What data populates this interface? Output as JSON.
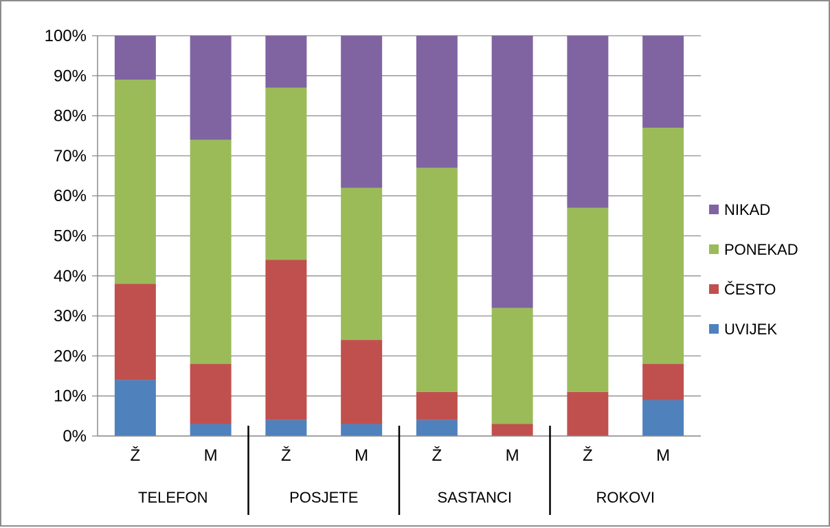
{
  "chart_data": {
    "type": "bar",
    "stacked": true,
    "percent_stacked": true,
    "title": "",
    "xlabel": "",
    "ylabel": "",
    "ylim": [
      0,
      100
    ],
    "y_ticks": [
      "0%",
      "10%",
      "20%",
      "30%",
      "40%",
      "50%",
      "60%",
      "70%",
      "80%",
      "90%",
      "100%"
    ],
    "grid": true,
    "legend_position": "right",
    "categories": [
      "Ž",
      "M",
      "Ž",
      "M",
      "Ž",
      "M",
      "Ž",
      "M"
    ],
    "groups": [
      {
        "label": "TELEFON",
        "categories": [
          "Ž",
          "M"
        ]
      },
      {
        "label": "POSJETE",
        "categories": [
          "Ž",
          "M"
        ]
      },
      {
        "label": "SASTANCI",
        "categories": [
          "Ž",
          "M"
        ]
      },
      {
        "label": "ROKOVI",
        "categories": [
          "Ž",
          "M"
        ]
      }
    ],
    "series": [
      {
        "name": "UVIJEK",
        "color": "#4f81bd",
        "values": [
          14,
          3,
          4,
          3,
          4,
          0,
          0,
          9
        ]
      },
      {
        "name": "ČESTO",
        "color": "#c0504d",
        "values": [
          24,
          15,
          40,
          21,
          7,
          3,
          11,
          9
        ]
      },
      {
        "name": "PONEKAD",
        "color": "#9bbb59",
        "values": [
          51,
          56,
          43,
          38,
          56,
          29,
          46,
          59
        ]
      },
      {
        "name": "NIKAD",
        "color": "#8064a2",
        "values": [
          11,
          26,
          13,
          38,
          33,
          68,
          43,
          23
        ]
      }
    ],
    "legend_order": [
      "NIKAD",
      "PONEKAD",
      "ČESTO",
      "UVIJEK"
    ]
  }
}
